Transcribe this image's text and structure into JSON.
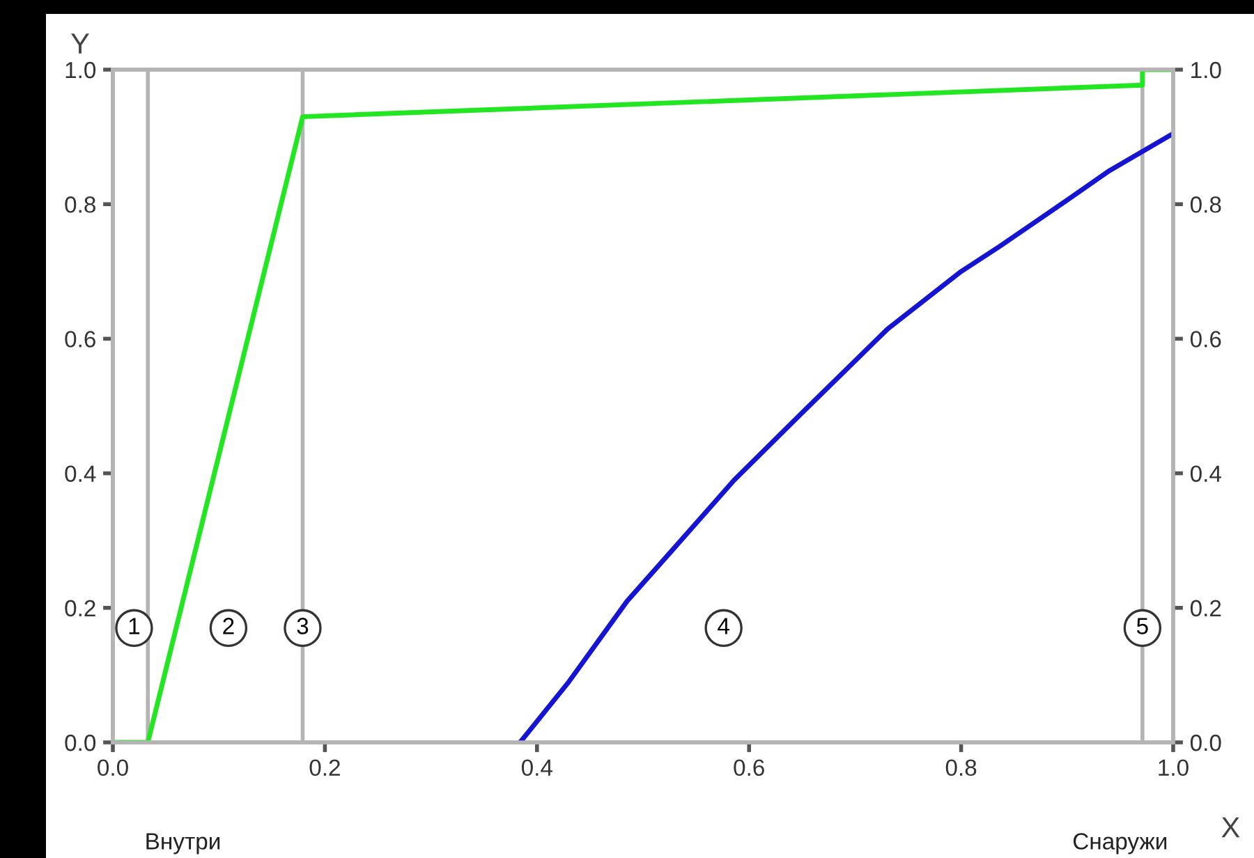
{
  "chart_data": {
    "type": "line",
    "xlabel": "X",
    "ylabel": "Y",
    "xlim": [
      0,
      1.0
    ],
    "xticks": [
      {
        "value": 0,
        "label": "0.0"
      },
      0.2,
      0.4,
      0.6,
      0.8,
      {
        "value": 1.0,
        "label": "1.0"
      }
    ],
    "ylim": [
      0,
      1.0
    ],
    "yticks": [
      {
        "value": 0,
        "label": "0.0"
      },
      0.2,
      0.4,
      0.6,
      0.8,
      {
        "value": 1.0,
        "label": "1.0"
      }
    ],
    "y2lim": [
      0,
      1.0
    ],
    "y2ticks": [
      {
        "value": 0,
        "label": "0.0"
      },
      0.2,
      0.4,
      0.6,
      0.8,
      {
        "value": 1.0,
        "label": "1.0"
      }
    ],
    "grid": false,
    "legend": false,
    "marker": "none",
    "line_style": "solid",
    "series": [
      {
        "color": "#22e622",
        "x": [
          0,
          0.033,
          0.179,
          0.971,
          0.971,
          1.0
        ],
        "values": [
          0,
          0,
          0.93,
          0.977,
          1.0,
          1.0
        ]
      },
      {
        "color": "#1414d2",
        "x": [
          0.384,
          0.43,
          0.485,
          0.53,
          0.586,
          0.65,
          0.731,
          0.8,
          0.836,
          0.888,
          0.94,
          1.0
        ],
        "values": [
          0,
          0.09,
          0.21,
          0.29,
          0.39,
          0.49,
          0.615,
          0.7,
          0.737,
          0.793,
          0.85,
          0.905
        ]
      }
    ],
    "ref_lines": [
      {
        "axis": "x",
        "value": 0.033,
        "color": "#b4b4b4"
      },
      {
        "axis": "x",
        "value": 0.179,
        "color": "#b4b4b4"
      },
      {
        "axis": "x",
        "value": 0.971,
        "color": "#b4b4b4"
      }
    ],
    "annotations": [
      {
        "text": "1",
        "x": 0.02,
        "y": 0.17
      },
      {
        "text": "2",
        "x": 0.109,
        "y": 0.17
      },
      {
        "text": "3",
        "x": 0.179,
        "y": 0.17
      },
      {
        "text": "4",
        "x": 0.576,
        "y": 0.17
      },
      {
        "text": "5",
        "x": 0.971,
        "y": 0.17
      },
      "Внутри",
      "Снаружи"
    ]
  }
}
